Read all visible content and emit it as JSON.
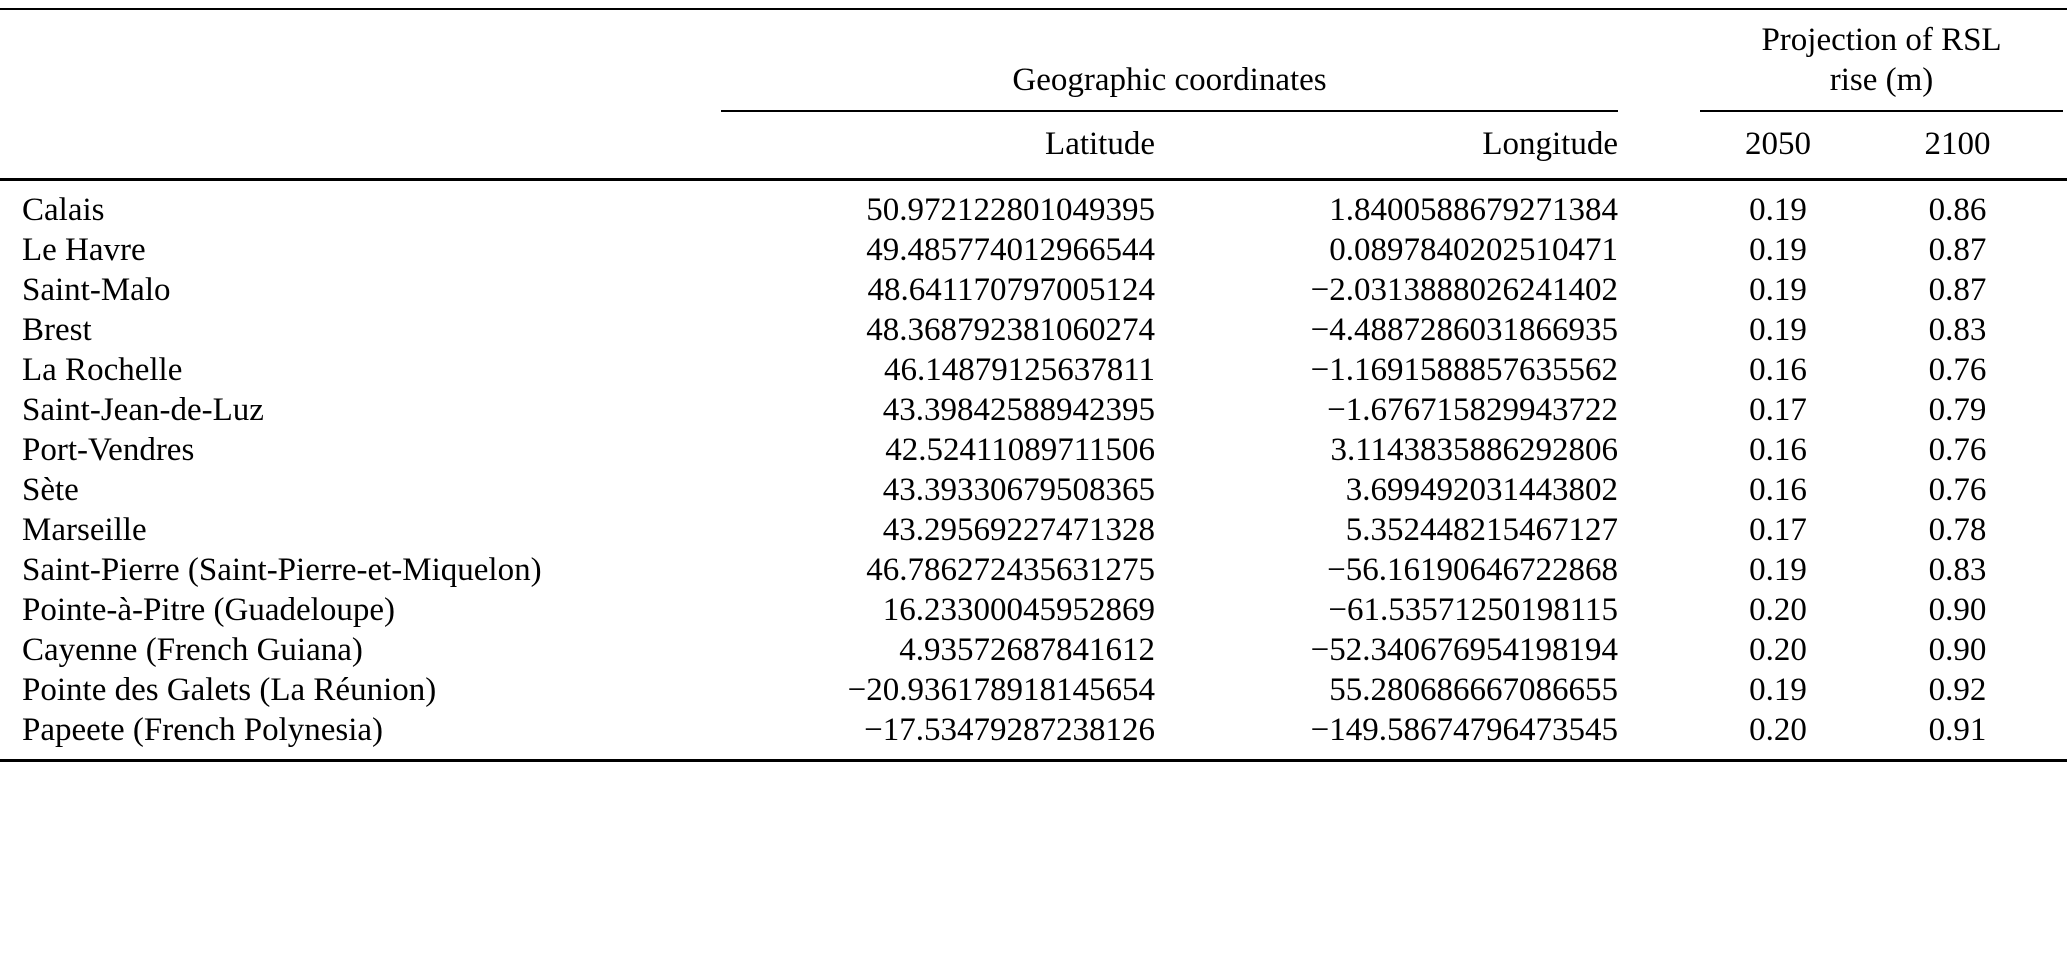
{
  "table": {
    "group_headers": {
      "coords": "Geographic coordinates",
      "projection": "Projection of RSL rise (m)"
    },
    "columns": {
      "latitude": "Latitude",
      "longitude": "Longitude",
      "y2050": "2050",
      "y2100": "2100"
    },
    "rows": [
      {
        "name": "Calais",
        "lat": "50.972122801049395",
        "lon": "1.8400588679271384",
        "r2050": "0.19",
        "r2100": "0.86"
      },
      {
        "name": "Le Havre",
        "lat": "49.485774012966544",
        "lon": "0.0897840202510471",
        "r2050": "0.19",
        "r2100": "0.87"
      },
      {
        "name": "Saint-Malo",
        "lat": "48.641170797005124",
        "lon": "−2.0313888026241402",
        "r2050": "0.19",
        "r2100": "0.87"
      },
      {
        "name": "Brest",
        "lat": "48.368792381060274",
        "lon": "−4.4887286031866935",
        "r2050": "0.19",
        "r2100": "0.83"
      },
      {
        "name": "La Rochelle",
        "lat": "46.14879125637811",
        "lon": "−1.1691588857635562",
        "r2050": "0.16",
        "r2100": "0.76"
      },
      {
        "name": "Saint-Jean-de-Luz",
        "lat": "43.39842588942395",
        "lon": "−1.676715829943722",
        "r2050": "0.17",
        "r2100": "0.79"
      },
      {
        "name": "Port-Vendres",
        "lat": "42.52411089711506",
        "lon": "3.1143835886292806",
        "r2050": "0.16",
        "r2100": "0.76"
      },
      {
        "name": "Sète",
        "lat": "43.39330679508365",
        "lon": "3.699492031443802",
        "r2050": "0.16",
        "r2100": "0.76"
      },
      {
        "name": "Marseille",
        "lat": "43.29569227471328",
        "lon": "5.352448215467127",
        "r2050": "0.17",
        "r2100": "0.78"
      },
      {
        "name": "Saint-Pierre (Saint-Pierre-et-Miquelon)",
        "lat": "46.786272435631275",
        "lon": "−56.16190646722868",
        "r2050": "0.19",
        "r2100": "0.83"
      },
      {
        "name": "Pointe-à-Pitre (Guadeloupe)",
        "lat": "16.23300045952869",
        "lon": "−61.53571250198115",
        "r2050": "0.20",
        "r2100": "0.90"
      },
      {
        "name": "Cayenne (French Guiana)",
        "lat": "4.93572687841612",
        "lon": "−52.340676954198194",
        "r2050": "0.20",
        "r2100": "0.90"
      },
      {
        "name": "Pointe des Galets (La Réunion)",
        "lat": "−20.936178918145654",
        "lon": "55.280686667086655",
        "r2050": "0.19",
        "r2100": "0.92"
      },
      {
        "name": "Papeete (French Polynesia)",
        "lat": "−17.53479287238126",
        "lon": "−149.58674796473545",
        "r2050": "0.20",
        "r2100": "0.91"
      }
    ]
  }
}
